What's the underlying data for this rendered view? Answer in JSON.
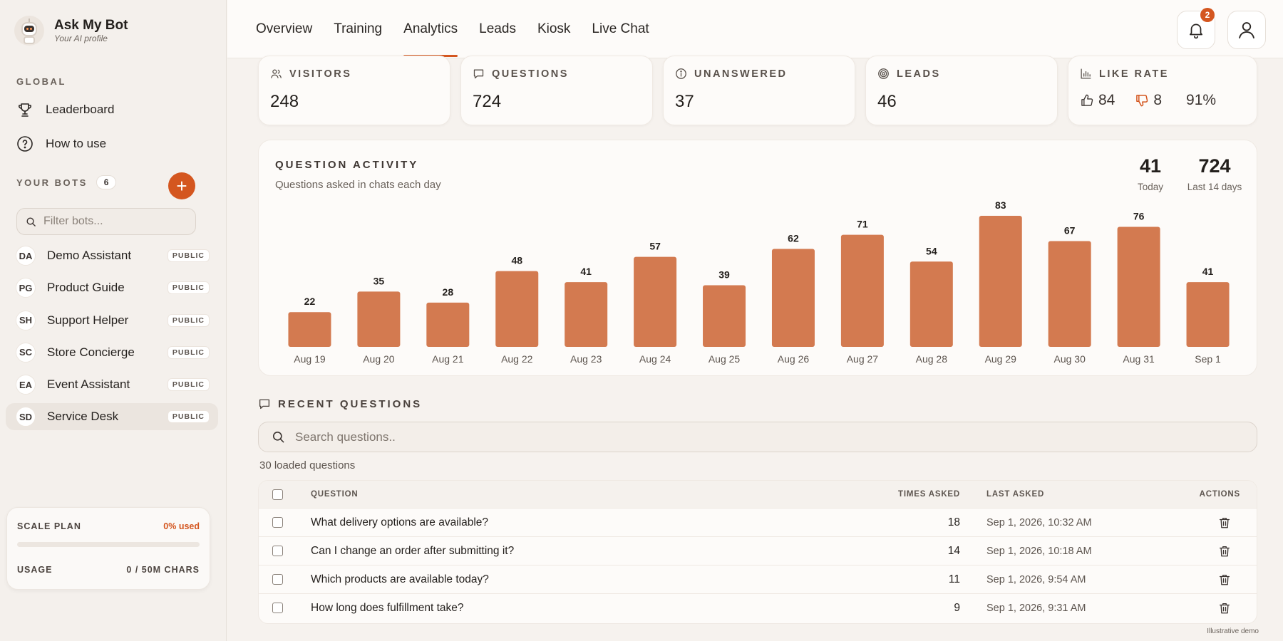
{
  "brand": {
    "name": "Ask My Bot",
    "subtitle": "Your AI profile"
  },
  "sidebar": {
    "global_label": "GLOBAL",
    "global_links": [
      {
        "label": "Leaderboard",
        "icon": "trophy-icon"
      },
      {
        "label": "How to use",
        "icon": "question-circle-icon"
      }
    ],
    "bots_label": "YOUR BOTS",
    "bots_count": "6",
    "add_label": "+",
    "filter_placeholder": "Filter bots...",
    "bots": [
      {
        "initials": "DA",
        "name": "Demo Assistant",
        "visibility": "PUBLIC"
      },
      {
        "initials": "PG",
        "name": "Product Guide",
        "visibility": "PUBLIC"
      },
      {
        "initials": "SH",
        "name": "Support Helper",
        "visibility": "PUBLIC"
      },
      {
        "initials": "SC",
        "name": "Store Concierge",
        "visibility": "PUBLIC"
      },
      {
        "initials": "EA",
        "name": "Event Assistant",
        "visibility": "PUBLIC"
      },
      {
        "initials": "SD",
        "name": "Service Desk",
        "visibility": "PUBLIC"
      }
    ],
    "active_bot": "Service Desk",
    "plan": {
      "name": "SCALE PLAN",
      "used": "0% used",
      "usage_label": "USAGE",
      "usage_value": "0 / 50M CHARS",
      "usage_fraction": 0
    }
  },
  "topbar": {
    "tabs": [
      "Overview",
      "Training",
      "Analytics",
      "Leads",
      "Kiosk",
      "Live Chat"
    ],
    "active_tab": "Analytics",
    "notification_count": "2"
  },
  "stats": [
    {
      "label": "VISITORS",
      "value": "248",
      "icon": "users-icon"
    },
    {
      "label": "QUESTIONS",
      "value": "724",
      "icon": "chat-bubble-icon"
    },
    {
      "label": "UNANSWERED",
      "value": "37",
      "icon": "info-circle-icon"
    },
    {
      "label": "LEADS",
      "value": "46",
      "icon": "target-icon"
    }
  ],
  "like_rate": {
    "label": "LIKE RATE",
    "likes": "84",
    "dislikes": "8",
    "rate": "91%",
    "icon": "bar-chart-icon"
  },
  "chart_data": {
    "type": "bar",
    "title": "QUESTION ACTIVITY",
    "subtitle": "Questions asked in chats each day",
    "categories": [
      "Aug 19",
      "Aug 20",
      "Aug 21",
      "Aug 22",
      "Aug 23",
      "Aug 24",
      "Aug 25",
      "Aug 26",
      "Aug 27",
      "Aug 28",
      "Aug 29",
      "Aug 30",
      "Aug 31",
      "Sep 1"
    ],
    "values": [
      22,
      35,
      28,
      48,
      41,
      57,
      39,
      62,
      71,
      54,
      83,
      67,
      76,
      41
    ],
    "color": "#d37a50",
    "grid": false,
    "summary": [
      {
        "value": "41",
        "label": "Today"
      },
      {
        "value": "724",
        "label": "Last 14 days"
      }
    ]
  },
  "recent": {
    "title": "RECENT QUESTIONS",
    "search_placeholder": "Search questions..",
    "loaded_text": "30 loaded questions",
    "columns": {
      "question": "QUESTION",
      "times": "TIMES ASKED",
      "last": "LAST ASKED",
      "actions": "ACTIONS"
    },
    "rows": [
      {
        "question": "What delivery options are available?",
        "times": "18",
        "last": "Sep 1, 2026, 10:32 AM"
      },
      {
        "question": "Can I change an order after submitting it?",
        "times": "14",
        "last": "Sep 1, 2026, 10:18 AM"
      },
      {
        "question": "Which products are available today?",
        "times": "11",
        "last": "Sep 1, 2026, 9:54 AM"
      },
      {
        "question": "How long does fulfillment take?",
        "times": "9",
        "last": "Sep 1, 2026, 9:31 AM"
      }
    ]
  },
  "footnote": "Illustrative demo",
  "colors": {
    "accent": "#d4561f",
    "bar": "#d37a50"
  }
}
